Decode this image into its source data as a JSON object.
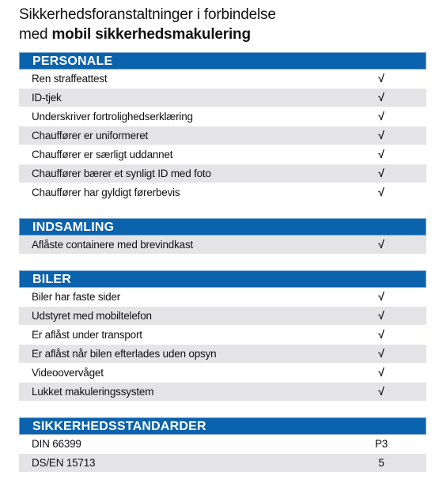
{
  "title": {
    "line1": "Sikkerhedsforanstaltninger i forbindelse",
    "line2_prefix": "med",
    "line2_bold": "mobil sikkerhedsmakulering"
  },
  "sections": [
    {
      "heading": "PERSONALE",
      "rows": [
        [
          "Ren straffeattest",
          "√"
        ],
        [
          "ID-tjek",
          "√"
        ],
        [
          "Underskriver fortrolighedserklæring",
          "√"
        ],
        [
          "Chauffører er uniformeret",
          "√"
        ],
        [
          "Chauffører er særligt uddannet",
          "√"
        ],
        [
          "Chauffører bærer et synligt ID med foto",
          "√"
        ],
        [
          "Chauffører har gyldigt førerbevis",
          "√"
        ]
      ]
    },
    {
      "heading": "INDSAMLING",
      "rows": [
        [
          "Aflåste containere med brevindkast",
          "√"
        ]
      ]
    },
    {
      "heading": "BILER",
      "rows": [
        [
          "Biler har faste sider",
          "√"
        ],
        [
          "Udstyret med mobiltelefon",
          "√"
        ],
        [
          "Er aflåst under transport",
          "√"
        ],
        [
          "Er aflåst når bilen efterlades uden opsyn",
          "√"
        ],
        [
          "Videoovervåget",
          "√"
        ],
        [
          "Lukket makuleringssystem",
          "√"
        ]
      ]
    },
    {
      "heading": "SIKKERHEDSSTANDARDER",
      "rows": [
        [
          "DIN 66399",
          "P3"
        ],
        [
          "DS/EN 15713",
          "5"
        ]
      ]
    }
  ]
}
